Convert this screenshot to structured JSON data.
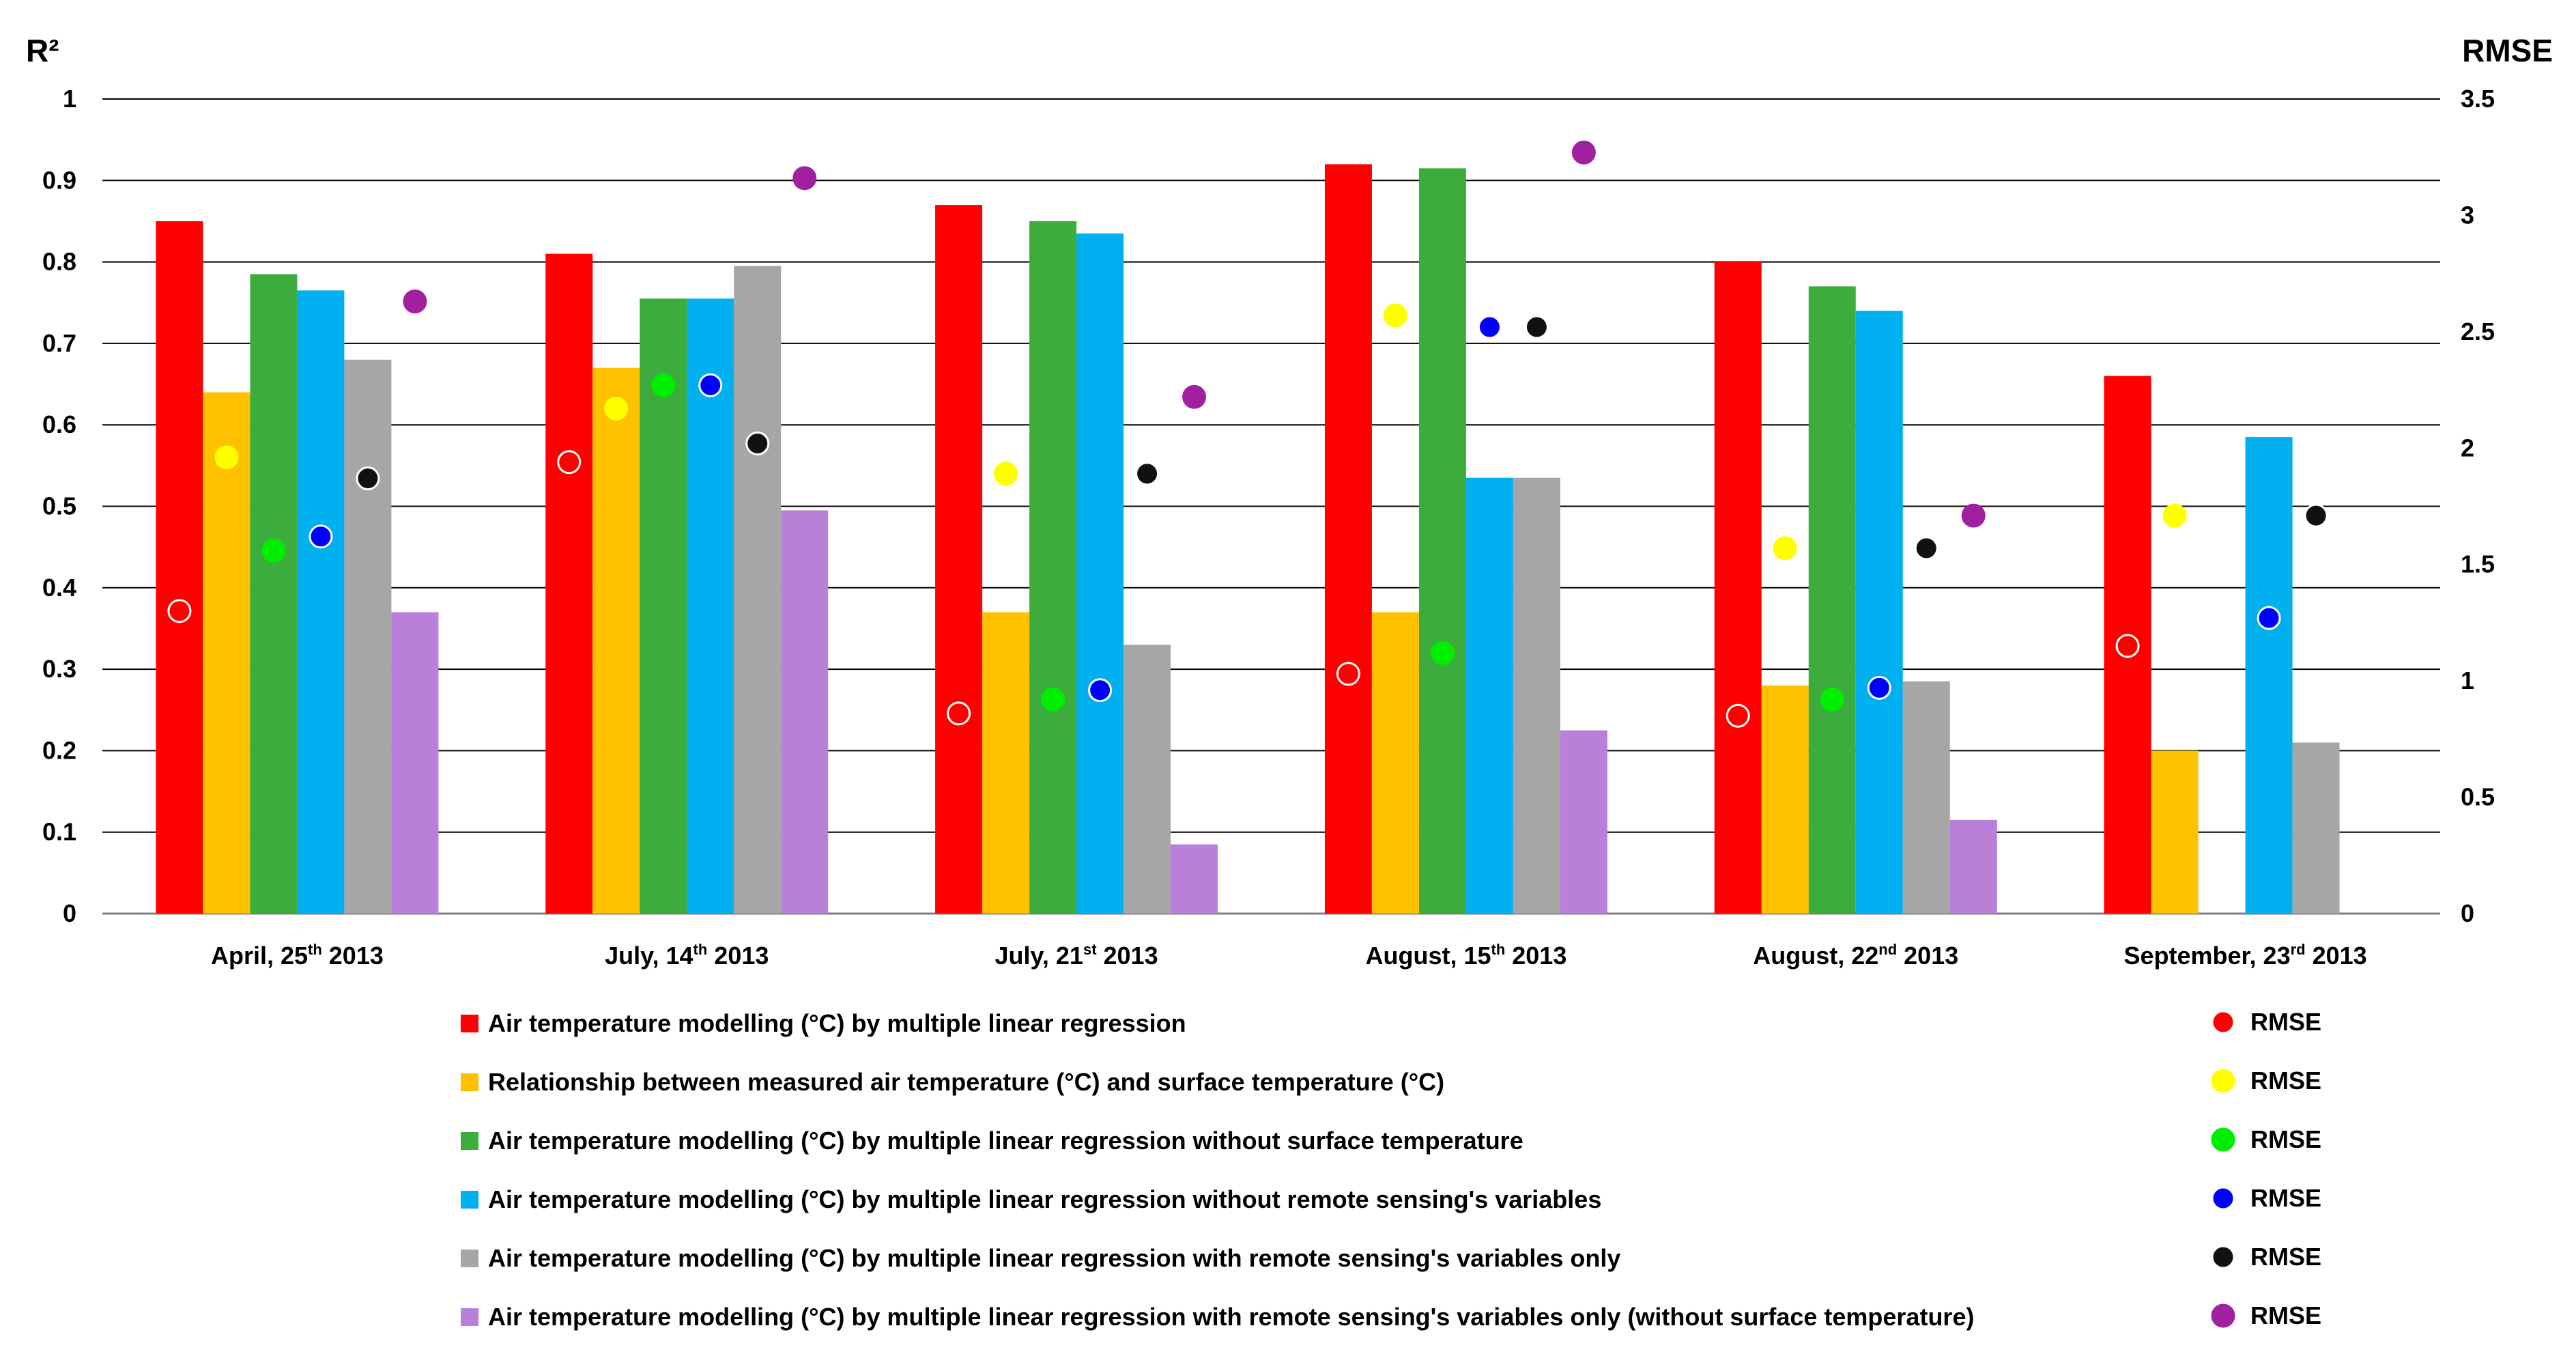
{
  "chart_data": {
    "type": "bar",
    "title": "",
    "ylabel": "R²",
    "y2label": "RMSE",
    "ylim": [
      0,
      1
    ],
    "y2lim": [
      0,
      3.5
    ],
    "yticks": [
      "0",
      "0.1",
      "0.2",
      "0.3",
      "0.4",
      "0.5",
      "0.6",
      "0.7",
      "0.8",
      "0.9",
      "1"
    ],
    "y2ticks": [
      "0",
      "0.5",
      "1",
      "1.5",
      "2",
      "2.5",
      "3",
      "3.5"
    ],
    "grid": true,
    "categories": [
      {
        "prefix": "April, 25",
        "sup": "th",
        "suffix": " 2013"
      },
      {
        "prefix": "July, 14",
        "sup": "th",
        "suffix": " 2013"
      },
      {
        "prefix": "July, 21",
        "sup": "st",
        "suffix": " 2013"
      },
      {
        "prefix": "August, 15",
        "sup": "th",
        "suffix": " 2013"
      },
      {
        "prefix": "August, 22",
        "sup": "nd",
        "suffix": " 2013"
      },
      {
        "prefix": "September, 23",
        "sup": "rd",
        "suffix": " 2013"
      }
    ],
    "series": [
      {
        "name": "Air temperature modelling (°C) by multiple linear regression",
        "color": "#ff0000",
        "values": [
          0.85,
          0.81,
          0.87,
          0.92,
          0.8,
          0.66
        ],
        "rmse_label": "RMSE",
        "rmse_color": "#ff0000",
        "rmse_outline": "#ffffff",
        "rmse": [
          1.3,
          1.94,
          0.86,
          1.03,
          0.85,
          1.15
        ]
      },
      {
        "name": "Relationship between measured air temperature (°C) and surface temperature (°C)",
        "color": "#ffc000",
        "values": [
          0.64,
          0.67,
          0.37,
          0.37,
          0.28,
          0.2
        ],
        "rmse_label": "RMSE",
        "rmse_color": "#ffff00",
        "rmse_outline": "#ffff00",
        "rmse": [
          1.96,
          2.17,
          1.89,
          2.57,
          1.57,
          1.71
        ]
      },
      {
        "name": "Air temperature modelling (°C) by multiple linear regression without surface temperature",
        "color": "#3cac3c",
        "values": [
          0.785,
          0.755,
          0.85,
          0.915,
          0.77,
          null
        ],
        "rmse_label": "RMSE",
        "rmse_color": "#00ee00",
        "rmse_outline": "#00ee00",
        "rmse": [
          1.56,
          2.27,
          0.92,
          1.12,
          0.92,
          null
        ]
      },
      {
        "name": "Air temperature modelling (°C) by multiple linear regression without remote sensing's variables",
        "color": "#00b0f0",
        "values": [
          0.765,
          0.755,
          0.835,
          0.535,
          0.74,
          0.585
        ],
        "rmse_label": "RMSE",
        "rmse_color": "#0000ff",
        "rmse_outline": "#ffffff",
        "rmse": [
          1.62,
          2.27,
          0.96,
          2.52,
          0.97,
          1.27
        ]
      },
      {
        "name": "Air temperature modelling (°C) by multiple linear regression with remote sensing's variables only",
        "color": "#a6a6a6",
        "values": [
          0.68,
          0.795,
          0.33,
          0.535,
          0.285,
          0.21
        ],
        "rmse_label": "RMSE",
        "rmse_color": "#111111",
        "rmse_outline": "#ffffff",
        "rmse": [
          1.87,
          2.02,
          1.89,
          2.52,
          1.57,
          1.71
        ]
      },
      {
        "name": "Air temperature modelling (°C) by multiple linear regression with remote sensing's variables only (without surface temperature)",
        "color": "#b97fd9",
        "values": [
          0.37,
          0.495,
          0.085,
          0.225,
          0.115,
          null
        ],
        "rmse_label": "RMSE",
        "rmse_color": "#a020a0",
        "rmse_outline": "#a020a0",
        "rmse": [
          2.63,
          3.16,
          2.22,
          3.27,
          1.71,
          null
        ]
      }
    ]
  }
}
